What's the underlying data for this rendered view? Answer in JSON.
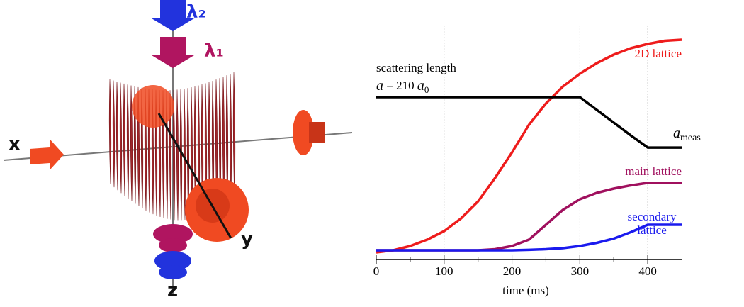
{
  "diagram": {
    "labels": {
      "lambda2": "λ₂",
      "lambda1": "λ₁",
      "x": "x",
      "y": "y",
      "z": "z"
    }
  },
  "chart_data": {
    "type": "line",
    "x": [
      0,
      25,
      50,
      75,
      100,
      125,
      150,
      175,
      200,
      225,
      250,
      275,
      300,
      325,
      350,
      375,
      400,
      425,
      450
    ],
    "xlim": [
      0,
      450
    ],
    "xticks": [
      0,
      100,
      200,
      300,
      400
    ],
    "xminorticks": [
      50,
      150,
      250,
      350
    ],
    "ylim": [
      0,
      1
    ],
    "grid": true,
    "xlabel": "time (ms)",
    "annotation": {
      "line1": "scattering length",
      "symbol": "a",
      "equals": "= 210",
      "unit": "a",
      "unit_sub": "0"
    },
    "series": [
      {
        "name": "2D lattice",
        "color": "#ee1c1c",
        "values": [
          0,
          0.01,
          0.03,
          0.06,
          0.1,
          0.16,
          0.24,
          0.35,
          0.47,
          0.6,
          0.7,
          0.78,
          0.84,
          0.89,
          0.93,
          0.96,
          0.98,
          0.995,
          1.0
        ]
      },
      {
        "symbol": "a",
        "subscript": "meas",
        "color": "#000000",
        "values": [
          0.73,
          0.73,
          0.73,
          0.73,
          0.73,
          0.73,
          0.73,
          0.73,
          0.73,
          0.73,
          0.73,
          0.73,
          0.73,
          0.67,
          0.61,
          0.55,
          0.493,
          0.493,
          0.493
        ]
      },
      {
        "name": "main lattice",
        "color": "#a0105e",
        "values": [
          0.01,
          0.01,
          0.01,
          0.01,
          0.01,
          0.01,
          0.01,
          0.015,
          0.03,
          0.06,
          0.13,
          0.2,
          0.25,
          0.28,
          0.3,
          0.315,
          0.327,
          0.327,
          0.327
        ]
      },
      {
        "name": "secondary lattice",
        "color": "#1a1aee",
        "values": [
          0.01,
          0.01,
          0.01,
          0.01,
          0.01,
          0.01,
          0.01,
          0.01,
          0.01,
          0.012,
          0.015,
          0.02,
          0.03,
          0.045,
          0.065,
          0.095,
          0.13,
          0.13,
          0.13
        ]
      }
    ]
  }
}
